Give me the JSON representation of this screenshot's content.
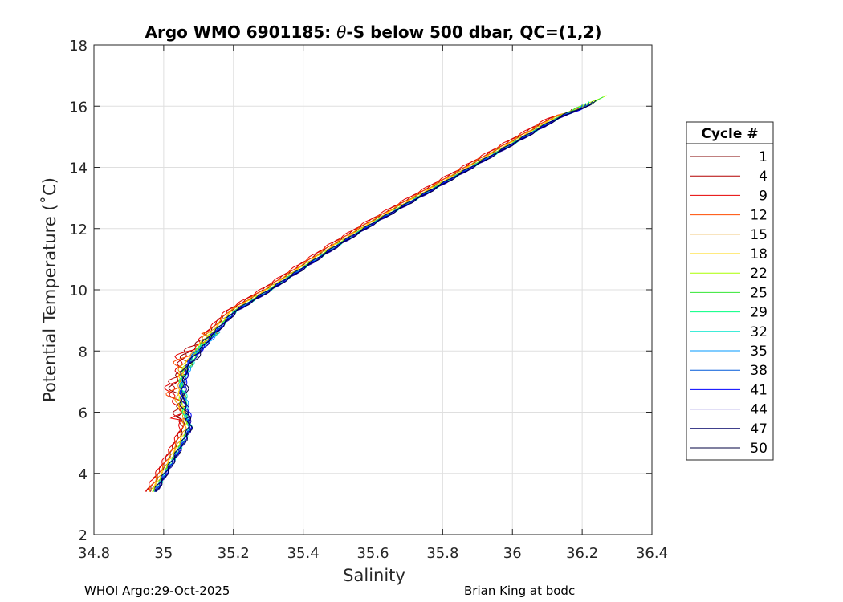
{
  "chart_data": {
    "type": "line",
    "title_pre": "Argo WMO 6901185: ",
    "title_theta": "θ",
    "title_post": "-S below 500 dbar,  QC=(1,2)",
    "xlabel": "Salinity",
    "ylabel": "Potential Temperature (˚C)",
    "xlim": [
      34.8,
      36.4
    ],
    "ylim": [
      2,
      18
    ],
    "xticks": [
      34.8,
      35,
      35.2,
      35.4,
      35.6,
      35.8,
      36,
      36.2,
      36.4
    ],
    "yticks": [
      2,
      4,
      6,
      8,
      10,
      12,
      14,
      16,
      18
    ],
    "grid": true,
    "legend_title": "Cycle #",
    "legend_position": "right",
    "base_profile": [
      [
        34.97,
        3.4
      ],
      [
        35.0,
        4.0
      ],
      [
        35.03,
        4.6
      ],
      [
        35.05,
        5.0
      ],
      [
        35.07,
        5.5
      ],
      [
        35.06,
        6.0
      ],
      [
        35.05,
        6.5
      ],
      [
        35.05,
        7.0
      ],
      [
        35.06,
        7.4
      ],
      [
        35.08,
        7.8
      ],
      [
        35.11,
        8.2
      ],
      [
        35.15,
        8.7
      ],
      [
        35.2,
        9.3
      ],
      [
        35.3,
        10.0
      ],
      [
        35.4,
        10.75
      ],
      [
        35.5,
        11.5
      ],
      [
        35.6,
        12.2
      ],
      [
        35.7,
        12.85
      ],
      [
        35.8,
        13.5
      ],
      [
        35.9,
        14.15
      ],
      [
        36.0,
        14.8
      ],
      [
        36.1,
        15.45
      ],
      [
        36.2,
        16.05
      ]
    ],
    "series": [
      {
        "name": "1",
        "color": "#800000",
        "offset": -0.012,
        "top": [
          36.17,
          15.9
        ]
      },
      {
        "name": "4",
        "color": "#b30000",
        "offset": -0.018,
        "top": [
          36.18,
          15.95
        ]
      },
      {
        "name": "9",
        "color": "#e60000",
        "offset": -0.022,
        "top": [
          36.2,
          16.0
        ]
      },
      {
        "name": "12",
        "color": "#ff4d00",
        "offset": -0.014,
        "top": [
          36.21,
          16.05
        ]
      },
      {
        "name": "15",
        "color": "#e69500",
        "offset": -0.008,
        "top": [
          36.22,
          16.1
        ]
      },
      {
        "name": "18",
        "color": "#ffd700",
        "offset": -0.004,
        "top": [
          36.22,
          16.1
        ]
      },
      {
        "name": "22",
        "color": "#aaff00",
        "offset": 0.0,
        "top": [
          36.27,
          16.35
        ]
      },
      {
        "name": "25",
        "color": "#33e633",
        "offset": 0.003,
        "top": [
          36.26,
          16.3
        ]
      },
      {
        "name": "29",
        "color": "#00ff80",
        "offset": 0.005,
        "top": [
          36.22,
          16.15
        ]
      },
      {
        "name": "32",
        "color": "#00e6cc",
        "offset": 0.008,
        "top": [
          36.21,
          16.1
        ]
      },
      {
        "name": "35",
        "color": "#0099ff",
        "offset": 0.006,
        "top": [
          36.2,
          16.05
        ]
      },
      {
        "name": "38",
        "color": "#0059d9",
        "offset": 0.004,
        "top": [
          36.2,
          16.05
        ]
      },
      {
        "name": "41",
        "color": "#0000ff",
        "offset": 0.007,
        "top": [
          36.22,
          16.1
        ]
      },
      {
        "name": "44",
        "color": "#1a00b3",
        "offset": 0.009,
        "top": [
          36.21,
          16.08
        ]
      },
      {
        "name": "47",
        "color": "#000066",
        "offset": 0.002,
        "top": [
          36.23,
          16.15
        ]
      },
      {
        "name": "50",
        "color": "#000040",
        "offset": 0.01,
        "top": [
          36.24,
          16.2
        ]
      }
    ]
  },
  "footer": {
    "left": "WHOI Argo:29-Oct-2025",
    "right": "Brian King at bodc"
  }
}
